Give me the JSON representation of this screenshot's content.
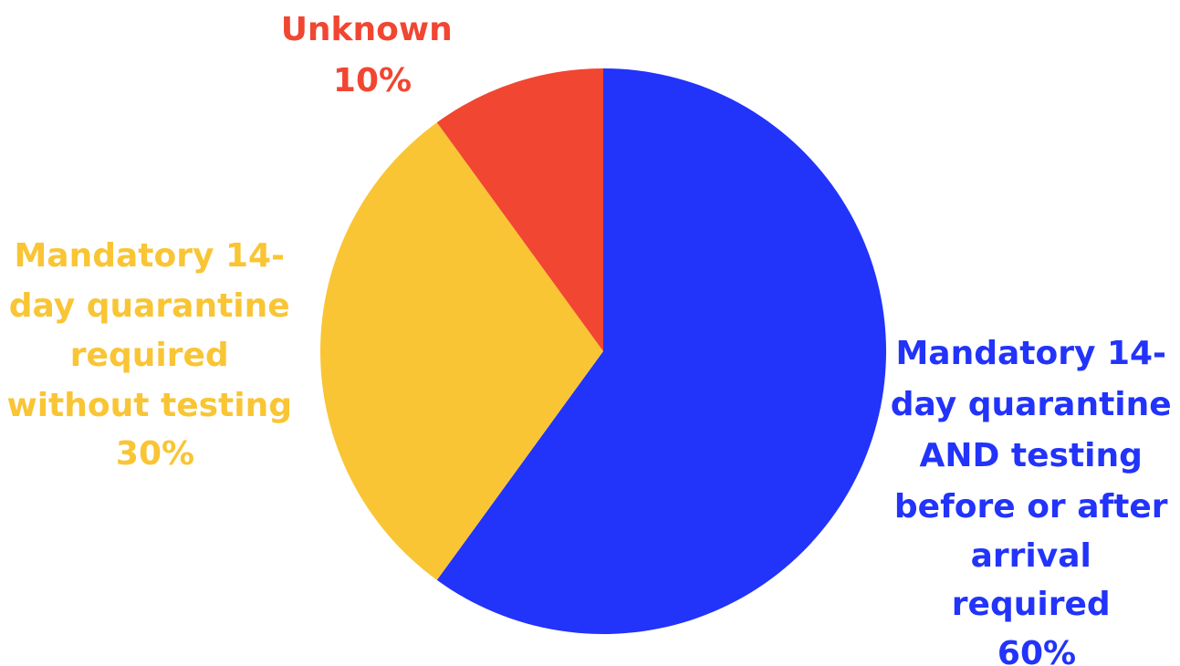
{
  "chart_data": {
    "type": "pie",
    "start_angle_deg": 0,
    "direction": "clockwise",
    "slices": [
      {
        "label_lines": [
          "Mandatory 14-",
          "day quarantine",
          "AND testing",
          "before or after",
          "arrival",
          "required"
        ],
        "value": 60,
        "value_label": "60%",
        "color": "#2233FA"
      },
      {
        "label_lines": [
          "Mandatory 14-",
          "day quarantine",
          "required",
          "without testing"
        ],
        "value": 30,
        "value_label": "30%",
        "color": "#F9C534"
      },
      {
        "label_lines": [
          "Unknown"
        ],
        "value": 10,
        "value_label": "10%",
        "color": "#F14632"
      }
    ]
  }
}
